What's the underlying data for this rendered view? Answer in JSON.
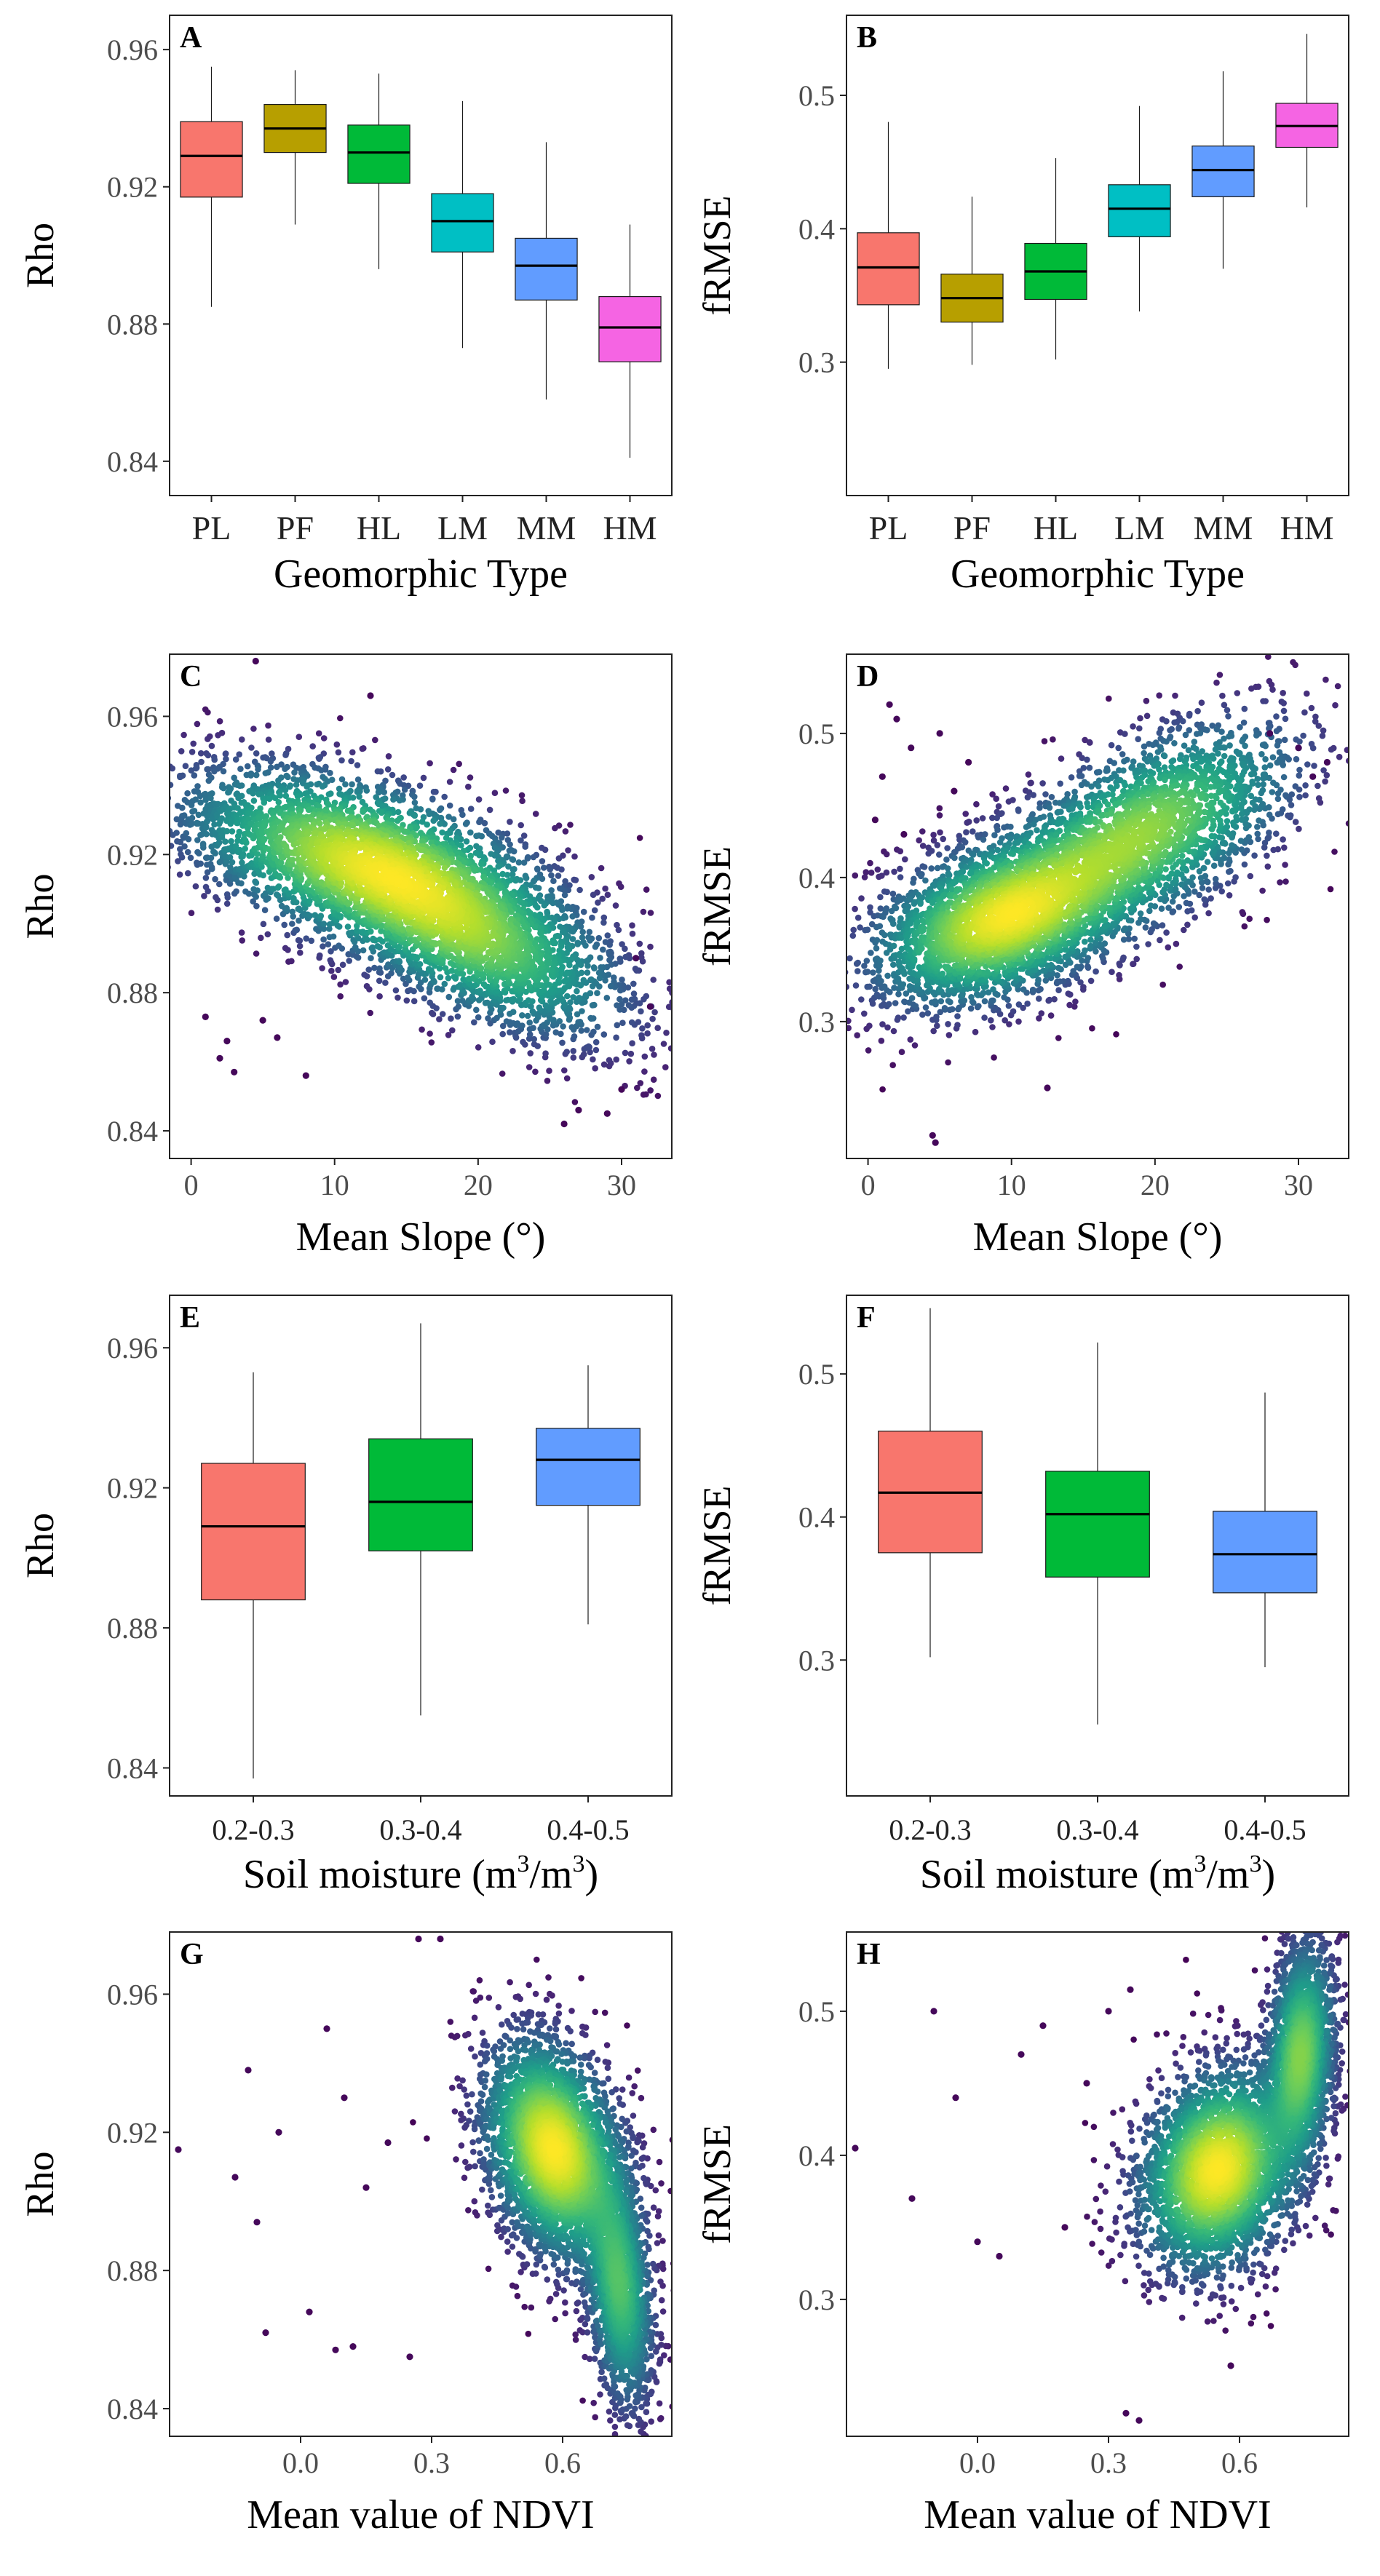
{
  "figure": {
    "panel_count": 8
  },
  "chart_data": [
    {
      "id": "A",
      "type": "box",
      "letter": "A",
      "title": "",
      "xlabel": "Geomorphic Type",
      "ylabel": "Rho",
      "ylim": [
        0.83,
        0.97
      ],
      "yticks": [
        0.84,
        0.88,
        0.92,
        0.96
      ],
      "ytick_labels": [
        "0.84",
        "0.88",
        "0.92",
        "0.96"
      ],
      "categories": [
        "PL",
        "PF",
        "HL",
        "LM",
        "MM",
        "HM"
      ],
      "colors": [
        "#F8766D",
        "#B79F00",
        "#00BA38",
        "#00BFC4",
        "#619CFF",
        "#F564E3"
      ],
      "boxes": [
        {
          "min": 0.885,
          "q1": 0.917,
          "median": 0.929,
          "q3": 0.939,
          "max": 0.955
        },
        {
          "min": 0.909,
          "q1": 0.93,
          "median": 0.937,
          "q3": 0.944,
          "max": 0.954
        },
        {
          "min": 0.896,
          "q1": 0.921,
          "median": 0.93,
          "q3": 0.938,
          "max": 0.953
        },
        {
          "min": 0.873,
          "q1": 0.901,
          "median": 0.91,
          "q3": 0.918,
          "max": 0.945
        },
        {
          "min": 0.858,
          "q1": 0.887,
          "median": 0.897,
          "q3": 0.905,
          "max": 0.933
        },
        {
          "min": 0.841,
          "q1": 0.869,
          "median": 0.879,
          "q3": 0.888,
          "max": 0.909
        }
      ]
    },
    {
      "id": "B",
      "type": "box",
      "letter": "B",
      "title": "",
      "xlabel": "Geomorphic Type",
      "ylabel": "fRMSE",
      "ylim": [
        0.2,
        0.56
      ],
      "yticks": [
        0.3,
        0.4,
        0.5
      ],
      "ytick_labels": [
        "0.3",
        "0.4",
        "0.5"
      ],
      "categories": [
        "PL",
        "PF",
        "HL",
        "LM",
        "MM",
        "HM"
      ],
      "colors": [
        "#F8766D",
        "#B79F00",
        "#00BA38",
        "#00BFC4",
        "#619CFF",
        "#F564E3"
      ],
      "boxes": [
        {
          "min": 0.295,
          "q1": 0.343,
          "median": 0.371,
          "q3": 0.397,
          "max": 0.48
        },
        {
          "min": 0.298,
          "q1": 0.33,
          "median": 0.348,
          "q3": 0.366,
          "max": 0.424
        },
        {
          "min": 0.302,
          "q1": 0.347,
          "median": 0.368,
          "q3": 0.389,
          "max": 0.453
        },
        {
          "min": 0.338,
          "q1": 0.394,
          "median": 0.415,
          "q3": 0.433,
          "max": 0.492
        },
        {
          "min": 0.37,
          "q1": 0.424,
          "median": 0.444,
          "q3": 0.462,
          "max": 0.518
        },
        {
          "min": 0.416,
          "q1": 0.461,
          "median": 0.477,
          "q3": 0.494,
          "max": 0.546
        }
      ]
    },
    {
      "id": "C",
      "type": "scatter",
      "letter": "C",
      "title": "",
      "xlabel": "Mean Slope (°)",
      "ylabel": "Rho",
      "xlim": [
        -1.5,
        33.5
      ],
      "ylim": [
        0.832,
        0.978
      ],
      "xticks": [
        0,
        10,
        20,
        30
      ],
      "xtick_labels": [
        "0",
        "10",
        "20",
        "30"
      ],
      "yticks": [
        0.84,
        0.88,
        0.92,
        0.96
      ],
      "ytick_labels": [
        "0.84",
        "0.88",
        "0.92",
        "0.96"
      ],
      "color_scale": "viridis (point density)",
      "density_clusters": [
        {
          "x": 12,
          "y": 0.918,
          "sx": 6.5,
          "sy": 0.014,
          "rho": -0.5,
          "weight": 0.6
        },
        {
          "x": 20,
          "y": 0.895,
          "sx": 5.5,
          "sy": 0.015,
          "rho": -0.6,
          "weight": 0.4
        }
      ],
      "peak": {
        "x": 13,
        "y": 0.917
      },
      "outliers": [
        [
          4.5,
          0.976
        ],
        [
          12.5,
          0.966
        ],
        [
          2,
          0.861
        ],
        [
          3,
          0.857
        ],
        [
          8,
          0.856
        ],
        [
          5,
          0.872
        ],
        [
          1,
          0.873
        ],
        [
          27,
          0.846
        ],
        [
          30,
          0.852
        ],
        [
          32,
          0.876
        ],
        [
          31,
          0.89
        ],
        [
          29,
          0.845
        ],
        [
          2.5,
          0.866
        ],
        [
          6,
          0.867
        ],
        [
          26,
          0.842
        ]
      ]
    },
    {
      "id": "D",
      "type": "scatter",
      "letter": "D",
      "title": "",
      "xlabel": "Mean Slope (°)",
      "ylabel": "fRMSE",
      "xlim": [
        -1.5,
        33.5
      ],
      "ylim": [
        0.205,
        0.555
      ],
      "xticks": [
        0,
        10,
        20,
        30
      ],
      "xtick_labels": [
        "0",
        "10",
        "20",
        "30"
      ],
      "yticks": [
        0.3,
        0.4,
        0.5
      ],
      "ytick_labels": [
        "0.3",
        "0.4",
        "0.5"
      ],
      "color_scale": "viridis (point density)",
      "density_clusters": [
        {
          "x": 9,
          "y": 0.37,
          "sx": 4.5,
          "sy": 0.03,
          "rho": 0.4,
          "weight": 0.55
        },
        {
          "x": 19,
          "y": 0.43,
          "sx": 5.5,
          "sy": 0.04,
          "rho": 0.6,
          "weight": 0.45
        }
      ],
      "peak": {
        "x": 9,
        "y": 0.37
      },
      "outliers": [
        [
          4.5,
          0.221
        ],
        [
          4.7,
          0.216
        ],
        [
          12.5,
          0.254
        ],
        [
          2,
          0.51
        ],
        [
          1,
          0.47
        ],
        [
          3,
          0.49
        ],
        [
          5,
          0.5
        ],
        [
          0.5,
          0.44
        ],
        [
          7,
          0.48
        ],
        [
          2.5,
          0.43
        ],
        [
          30,
          0.49
        ],
        [
          31,
          0.47
        ],
        [
          28,
          0.5
        ],
        [
          32,
          0.48
        ],
        [
          6,
          0.46
        ],
        [
          1.5,
          0.52
        ]
      ]
    },
    {
      "id": "E",
      "type": "box",
      "letter": "E",
      "title": "",
      "xlabel": "Soil moisture (m³/m³)",
      "ylabel": "Rho",
      "xlabel_main": "Soil moisture ",
      "xlabel_unit": "m",
      "xlabel_unit_exp": "3",
      "xlabel_unit_sep": "/",
      "xlabel_unit_exp2": "3",
      "ylim": [
        0.832,
        0.975
      ],
      "yticks": [
        0.84,
        0.88,
        0.92,
        0.96
      ],
      "ytick_labels": [
        "0.84",
        "0.88",
        "0.92",
        "0.96"
      ],
      "categories": [
        "0.2-0.3",
        "0.3-0.4",
        "0.4-0.5"
      ],
      "colors": [
        "#F8766D",
        "#00BA38",
        "#619CFF"
      ],
      "boxes": [
        {
          "min": 0.837,
          "q1": 0.888,
          "median": 0.909,
          "q3": 0.927,
          "max": 0.953
        },
        {
          "min": 0.855,
          "q1": 0.902,
          "median": 0.916,
          "q3": 0.934,
          "max": 0.967
        },
        {
          "min": 0.881,
          "q1": 0.915,
          "median": 0.928,
          "q3": 0.937,
          "max": 0.955
        }
      ]
    },
    {
      "id": "F",
      "type": "box",
      "letter": "F",
      "title": "",
      "xlabel": "Soil moisture (m³/m³)",
      "ylabel": "fRMSE",
      "xlabel_main": "Soil moisture ",
      "xlabel_unit": "m",
      "xlabel_unit_exp": "3",
      "xlabel_unit_sep": "/",
      "xlabel_unit_exp2": "3",
      "ylim": [
        0.205,
        0.555
      ],
      "yticks": [
        0.3,
        0.4,
        0.5
      ],
      "ytick_labels": [
        "0.3",
        "0.4",
        "0.5"
      ],
      "categories": [
        "0.2-0.3",
        "0.3-0.4",
        "0.4-0.5"
      ],
      "colors": [
        "#F8766D",
        "#00BA38",
        "#619CFF"
      ],
      "boxes": [
        {
          "min": 0.302,
          "q1": 0.375,
          "median": 0.417,
          "q3": 0.46,
          "max": 0.546
        },
        {
          "min": 0.255,
          "q1": 0.358,
          "median": 0.402,
          "q3": 0.432,
          "max": 0.522
        },
        {
          "min": 0.295,
          "q1": 0.347,
          "median": 0.374,
          "q3": 0.404,
          "max": 0.487
        }
      ]
    },
    {
      "id": "G",
      "type": "scatter",
      "letter": "G",
      "title": "",
      "xlabel": "Mean value of NDVI",
      "ylabel": "Rho",
      "xlim": [
        -0.3,
        0.85
      ],
      "ylim": [
        0.832,
        0.978
      ],
      "xticks": [
        0.0,
        0.3,
        0.6
      ],
      "xtick_labels": [
        "0.0",
        "0.3",
        "0.6"
      ],
      "yticks": [
        0.84,
        0.88,
        0.92,
        0.96
      ],
      "ytick_labels": [
        "0.84",
        "0.88",
        "0.92",
        "0.96"
      ],
      "color_scale": "viridis (point density)",
      "density_clusters": [
        {
          "x": 0.58,
          "y": 0.915,
          "sx": 0.08,
          "sy": 0.016,
          "rho": -0.3,
          "weight": 0.65
        },
        {
          "x": 0.73,
          "y": 0.875,
          "sx": 0.04,
          "sy": 0.018,
          "rho": -0.3,
          "weight": 0.35
        }
      ],
      "peak": {
        "x": 0.6,
        "y": 0.912
      },
      "outliers": [
        [
          -0.28,
          0.915
        ],
        [
          -0.12,
          0.938
        ],
        [
          -0.08,
          0.862
        ],
        [
          0.02,
          0.868
        ],
        [
          0.08,
          0.857
        ],
        [
          0.12,
          0.858
        ],
        [
          0.27,
          0.976
        ],
        [
          0.32,
          0.976
        ],
        [
          -0.15,
          0.907
        ],
        [
          0.06,
          0.95
        ],
        [
          0.25,
          0.855
        ],
        [
          -0.05,
          0.92
        ],
        [
          0.1,
          0.93
        ],
        [
          0.15,
          0.904
        ],
        [
          -0.1,
          0.894
        ],
        [
          0.2,
          0.917
        ]
      ]
    },
    {
      "id": "H",
      "type": "scatter",
      "letter": "H",
      "title": "",
      "xlabel": "Mean value of NDVI",
      "ylabel": "fRMSE",
      "xlim": [
        -0.3,
        0.85
      ],
      "ylim": [
        0.205,
        0.555
      ],
      "xticks": [
        0.0,
        0.3,
        0.6
      ],
      "xtick_labels": [
        "0.0",
        "0.3",
        "0.6"
      ],
      "yticks": [
        0.3,
        0.4,
        0.5
      ],
      "ytick_labels": [
        "0.3",
        "0.4",
        "0.5"
      ],
      "color_scale": "viridis (point density)",
      "density_clusters": [
        {
          "x": 0.55,
          "y": 0.39,
          "sx": 0.09,
          "sy": 0.035,
          "rho": 0.2,
          "weight": 0.6
        },
        {
          "x": 0.74,
          "y": 0.47,
          "sx": 0.04,
          "sy": 0.04,
          "rho": 0.2,
          "weight": 0.4
        }
      ],
      "peak": {
        "x": 0.58,
        "y": 0.395
      },
      "outliers": [
        [
          0.34,
          0.221
        ],
        [
          0.37,
          0.216
        ],
        [
          0.58,
          0.254
        ],
        [
          -0.28,
          0.405
        ],
        [
          -0.1,
          0.5
        ],
        [
          0.0,
          0.34
        ],
        [
          0.05,
          0.33
        ],
        [
          0.3,
          0.5
        ],
        [
          0.35,
          0.515
        ],
        [
          -0.05,
          0.44
        ],
        [
          0.1,
          0.47
        ],
        [
          0.2,
          0.35
        ],
        [
          0.15,
          0.49
        ],
        [
          -0.15,
          0.37
        ],
        [
          0.25,
          0.45
        ]
      ]
    }
  ]
}
